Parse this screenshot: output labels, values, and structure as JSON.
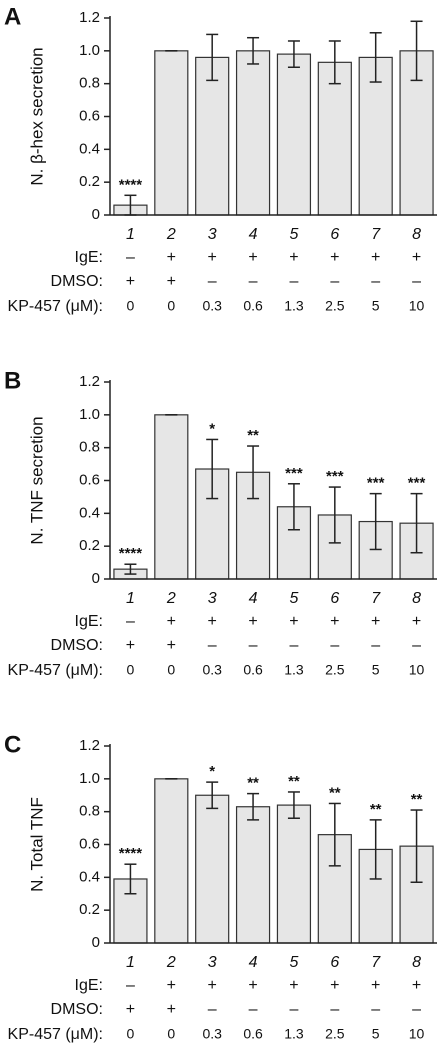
{
  "chart_data": [
    {
      "type": "bar",
      "panel": "A",
      "ylabel": "N. β-hex secretion",
      "categories": [
        "1",
        "2",
        "3",
        "4",
        "5",
        "6",
        "7",
        "8"
      ],
      "values": [
        0.06,
        1.0,
        0.96,
        1.0,
        0.98,
        0.93,
        0.96,
        1.0
      ],
      "errors": [
        0.06,
        0,
        0.14,
        0.08,
        0.08,
        0.13,
        0.15,
        0.18
      ],
      "annotations": [
        "****",
        null,
        null,
        null,
        null,
        null,
        null,
        null
      ],
      "ylim": [
        0,
        1.2
      ],
      "yticks": [
        0,
        0.2,
        0.4,
        0.6,
        0.8,
        {
          "value": 1,
          "label": "1.0"
        },
        1.2
      ],
      "color": "#e6e6e6",
      "conditions": [
        {
          "label": "IgE:",
          "values": [
            "–",
            "+",
            "+",
            "+",
            "+",
            "+",
            "+",
            "+"
          ]
        },
        {
          "label": "DMSO:",
          "values": [
            "+",
            "+",
            "–",
            "–",
            "–",
            "–",
            "–",
            "–"
          ]
        },
        {
          "label": "KP-457 (μM):",
          "values": [
            0,
            0,
            0.3,
            0.6,
            1.3,
            2.5,
            5,
            10
          ]
        }
      ]
    },
    {
      "type": "bar",
      "panel": "B",
      "ylabel": "N. TNF secretion",
      "categories": [
        "1",
        "2",
        "3",
        "4",
        "5",
        "6",
        "7",
        "8"
      ],
      "values": [
        0.06,
        1.0,
        0.67,
        0.65,
        0.44,
        0.39,
        0.35,
        0.34
      ],
      "errors": [
        0.03,
        0,
        0.18,
        0.16,
        0.14,
        0.17,
        0.17,
        0.18
      ],
      "annotations": [
        "****",
        null,
        "*",
        "**",
        "***",
        "***",
        "***",
        "***"
      ],
      "ylim": [
        0,
        1.2
      ],
      "yticks": [
        0,
        0.2,
        0.4,
        0.6,
        0.8,
        {
          "value": 1,
          "label": "1.0"
        },
        1.2
      ],
      "color": "#e6e6e6",
      "conditions": [
        {
          "label": "IgE:",
          "values": [
            "–",
            "+",
            "+",
            "+",
            "+",
            "+",
            "+",
            "+"
          ]
        },
        {
          "label": "DMSO:",
          "values": [
            "+",
            "+",
            "–",
            "–",
            "–",
            "–",
            "–",
            "–"
          ]
        },
        {
          "label": "KP-457 (μM):",
          "values": [
            0,
            0,
            0.3,
            0.6,
            1.3,
            2.5,
            5,
            10
          ]
        }
      ]
    },
    {
      "type": "bar",
      "panel": "C",
      "ylabel": "N. Total TNF",
      "categories": [
        "1",
        "2",
        "3",
        "4",
        "5",
        "6",
        "7",
        "8"
      ],
      "values": [
        0.39,
        1.0,
        0.9,
        0.83,
        0.84,
        0.66,
        0.57,
        0.59
      ],
      "errors": [
        0.09,
        0,
        0.08,
        0.08,
        0.08,
        0.19,
        0.18,
        0.22
      ],
      "annotations": [
        "****",
        null,
        "*",
        "**",
        "**",
        "**",
        "**",
        "**"
      ],
      "ylim": [
        0,
        1.2
      ],
      "yticks": [
        0,
        0.2,
        0.4,
        0.6,
        0.8,
        {
          "value": 1,
          "label": "1.0"
        },
        1.2
      ],
      "color": "#e6e6e6",
      "conditions": [
        {
          "label": "IgE:",
          "values": [
            "–",
            "+",
            "+",
            "+",
            "+",
            "+",
            "+",
            "+"
          ]
        },
        {
          "label": "DMSO:",
          "values": [
            "+",
            "+",
            "–",
            "–",
            "–",
            "–",
            "–",
            "–"
          ]
        },
        {
          "label": "KP-457 (μM):",
          "values": [
            0,
            0,
            0.3,
            0.6,
            1.3,
            2.5,
            5,
            10
          ]
        }
      ]
    }
  ]
}
